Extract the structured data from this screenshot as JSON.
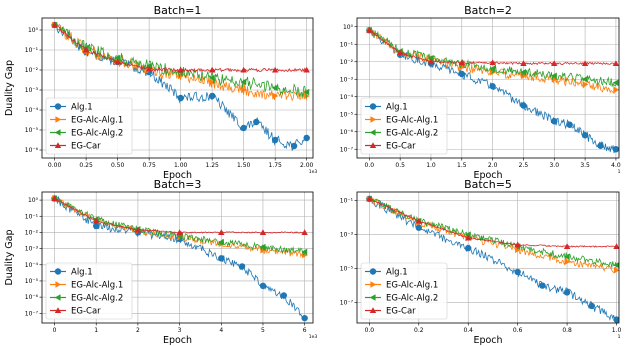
{
  "chart_data": [
    {
      "type": "line",
      "title": "Batch=1",
      "xlabel": "Epoch",
      "ylabel": "Duality Gap",
      "yscale": "log",
      "x_multiplier_label": "1e3",
      "xlim": [
        -0.1,
        2.05
      ],
      "ylim_exp": [
        -6.4,
        0.6
      ],
      "xticks": [
        0,
        0.25,
        0.5,
        0.75,
        1.0,
        1.25,
        1.5,
        1.75,
        2.0
      ],
      "xtick_labels": [
        "0.00",
        "0.25",
        "0.50",
        "0.75",
        "1.00",
        "1.25",
        "1.50",
        "1.75",
        "2.00"
      ],
      "ytick_exps": [
        0,
        -1,
        -2,
        -3,
        -4,
        -5,
        -6
      ],
      "ytick_labels": [
        "10⁰",
        "10⁻¹",
        "10⁻²",
        "10⁻³",
        "10⁻⁴",
        "10⁻⁵",
        "10⁻⁶"
      ],
      "grid": true,
      "legend_position": "lower-left",
      "series": [
        {
          "name": "Alg.1",
          "color": "#1f77b4",
          "marker": "circle",
          "x": [
            0,
            0.25,
            0.5,
            0.75,
            1.0,
            1.25,
            1.5,
            1.6,
            1.75,
            1.9,
            2.0
          ],
          "y_exp": [
            0.25,
            -1.1,
            -1.6,
            -2.1,
            -3.4,
            -3.3,
            -4.9,
            -4.6,
            -5.5,
            -5.8,
            -5.4
          ],
          "noise": 0.25
        },
        {
          "name": "EG-Alc-Alg.1",
          "color": "#ff7f0e",
          "marker": "triangle-right",
          "x": [
            0,
            0.25,
            0.5,
            0.75,
            1.0,
            1.25,
            1.5,
            1.75,
            2.0
          ],
          "y_exp": [
            0.25,
            -1.0,
            -1.5,
            -2.0,
            -2.3,
            -2.6,
            -3.0,
            -3.3,
            -3.3
          ],
          "noise": 0.3
        },
        {
          "name": "EG-Alc-Alg.2",
          "color": "#2ca02c",
          "marker": "triangle-left",
          "x": [
            0,
            0.25,
            0.5,
            0.75,
            1.0,
            1.25,
            1.5,
            1.75,
            2.0
          ],
          "y_exp": [
            0.25,
            -0.9,
            -1.4,
            -1.8,
            -2.1,
            -2.4,
            -2.6,
            -2.9,
            -3.1
          ],
          "noise": 0.3
        },
        {
          "name": "EG-Car",
          "color": "#d62728",
          "marker": "triangle-up",
          "x": [
            0,
            0.25,
            0.5,
            0.75,
            1.0,
            1.25,
            1.5,
            1.75,
            2.0
          ],
          "y_exp": [
            0.25,
            -1.0,
            -1.6,
            -1.95,
            -2.0,
            -2.0,
            -2.0,
            -2.0,
            -2.0
          ],
          "noise": 0.08
        }
      ]
    },
    {
      "type": "line",
      "title": "Batch=2",
      "xlabel": "Epoch",
      "ylabel": "",
      "yscale": "log",
      "x_multiplier_label": "1",
      "xlim": [
        -0.2,
        4.05
      ],
      "ylim_exp": [
        -7.5,
        0.5
      ],
      "xticks": [
        0,
        0.5,
        1.0,
        1.5,
        2.0,
        2.5,
        3.0,
        3.5,
        4.0
      ],
      "xtick_labels": [
        "0.0",
        "0.5",
        "1.0",
        "1.5",
        "2.0",
        "2.5",
        "3.0",
        "3.5",
        "4.0"
      ],
      "ytick_exps": [
        0,
        -1,
        -2,
        -3,
        -4,
        -5,
        -6,
        -7
      ],
      "ytick_labels": [
        "10⁰",
        "10⁻¹",
        "10⁻²",
        "10⁻³",
        "10⁻⁴",
        "10⁻⁵",
        "10⁻⁶",
        "10⁻⁷"
      ],
      "grid": true,
      "legend_position": "lower-left",
      "series": [
        {
          "name": "Alg.1",
          "color": "#1f77b4",
          "marker": "circle",
          "x": [
            0,
            0.5,
            1.0,
            1.5,
            2.0,
            2.5,
            3.0,
            3.25,
            3.5,
            3.75,
            4.0
          ],
          "y_exp": [
            -0.2,
            -1.6,
            -2.1,
            -2.7,
            -3.4,
            -4.5,
            -5.4,
            -5.6,
            -6.2,
            -6.8,
            -7.0
          ],
          "noise": 0.25
        },
        {
          "name": "EG-Alc-Alg.1",
          "color": "#ff7f0e",
          "marker": "triangle-right",
          "x": [
            0,
            0.5,
            1.0,
            1.5,
            2.0,
            2.5,
            3.0,
            3.5,
            4.0
          ],
          "y_exp": [
            -0.2,
            -1.5,
            -1.9,
            -2.3,
            -2.6,
            -2.8,
            -3.0,
            -3.3,
            -3.6
          ],
          "noise": 0.25
        },
        {
          "name": "EG-Alc-Alg.2",
          "color": "#2ca02c",
          "marker": "triangle-left",
          "x": [
            0,
            0.5,
            1.0,
            1.5,
            2.0,
            2.5,
            3.0,
            3.5,
            4.0
          ],
          "y_exp": [
            -0.2,
            -1.4,
            -1.8,
            -2.1,
            -2.4,
            -2.6,
            -2.8,
            -3.0,
            -3.2
          ],
          "noise": 0.25
        },
        {
          "name": "EG-Car",
          "color": "#d62728",
          "marker": "triangle-up",
          "x": [
            0,
            0.5,
            1.0,
            1.5,
            2.0,
            2.5,
            3.0,
            3.5,
            4.0
          ],
          "y_exp": [
            -0.2,
            -1.5,
            -2.0,
            -2.05,
            -2.05,
            -2.1,
            -2.1,
            -2.1,
            -2.1
          ],
          "noise": 0.06
        }
      ]
    },
    {
      "type": "line",
      "title": "Batch=3",
      "xlabel": "Epoch",
      "ylabel": "Duality Gap",
      "yscale": "log",
      "x_multiplier_label": "1e3",
      "xlim": [
        -0.3,
        6.2
      ],
      "ylim_exp": [
        -7.6,
        0.5
      ],
      "xticks": [
        0,
        1,
        2,
        3,
        4,
        5,
        6
      ],
      "xtick_labels": [
        "0",
        "1",
        "2",
        "3",
        "4",
        "5",
        "6"
      ],
      "ytick_exps": [
        0,
        -1,
        -2,
        -3,
        -4,
        -5,
        -6,
        -7
      ],
      "ytick_labels": [
        "10⁰",
        "10⁻¹",
        "10⁻²",
        "10⁻³",
        "10⁻⁴",
        "10⁻⁵",
        "10⁻⁶",
        "10⁻⁷"
      ],
      "grid": true,
      "legend_position": "lower-left",
      "series": [
        {
          "name": "Alg.1",
          "color": "#1f77b4",
          "marker": "circle",
          "x": [
            0,
            1,
            2,
            3,
            4,
            4.5,
            5,
            5.5,
            6.0
          ],
          "y_exp": [
            0.1,
            -1.6,
            -2.0,
            -2.4,
            -3.6,
            -4.1,
            -5.3,
            -5.9,
            -7.3
          ],
          "noise": 0.25
        },
        {
          "name": "EG-Alc-Alg.1",
          "color": "#ff7f0e",
          "marker": "triangle-right",
          "x": [
            0,
            1,
            2,
            3,
            4,
            5,
            6
          ],
          "y_exp": [
            0.1,
            -1.3,
            -1.9,
            -2.3,
            -2.7,
            -3.1,
            -3.4
          ],
          "noise": 0.2
        },
        {
          "name": "EG-Alc-Alg.2",
          "color": "#2ca02c",
          "marker": "triangle-left",
          "x": [
            0,
            1,
            2,
            3,
            4,
            5,
            6
          ],
          "y_exp": [
            0.1,
            -1.2,
            -1.8,
            -2.2,
            -2.6,
            -2.9,
            -3.2
          ],
          "noise": 0.2
        },
        {
          "name": "EG-Car",
          "color": "#d62728",
          "marker": "triangle-up",
          "x": [
            0,
            1,
            2,
            3,
            4,
            5,
            6
          ],
          "y_exp": [
            0.1,
            -1.3,
            -1.85,
            -2.0,
            -2.0,
            -2.0,
            -2.0
          ],
          "noise": 0.04
        }
      ]
    },
    {
      "type": "line",
      "title": "Batch=5",
      "xlabel": "Epoch",
      "ylabel": "",
      "yscale": "log",
      "x_multiplier_label": "1",
      "xlim": [
        -0.05,
        1.01
      ],
      "ylim_exp": [
        -8.2,
        -0.5
      ],
      "xticks": [
        0.0,
        0.2,
        0.4,
        0.6,
        0.8,
        1.0
      ],
      "xtick_labels": [
        "0.0",
        "0.2",
        "0.4",
        "0.6",
        "0.8",
        "1.0"
      ],
      "ytick_exps": [
        -1,
        -3,
        -5,
        -7
      ],
      "ytick_labels": [
        "10⁻¹",
        "10⁻³",
        "10⁻⁵",
        "10⁻⁷"
      ],
      "grid": true,
      "legend_position": "lower-left",
      "series": [
        {
          "name": "Alg.1",
          "color": "#1f77b4",
          "marker": "circle",
          "x": [
            0,
            0.2,
            0.4,
            0.6,
            0.7,
            0.8,
            0.9,
            1.0
          ],
          "y_exp": [
            -0.9,
            -2.6,
            -3.8,
            -5.2,
            -6.0,
            -6.4,
            -7.2,
            -8.0
          ],
          "noise": 0.25
        },
        {
          "name": "EG-Alc-Alg.1",
          "color": "#ff7f0e",
          "marker": "triangle-right",
          "x": [
            0,
            0.2,
            0.4,
            0.6,
            0.8,
            1.0
          ],
          "y_exp": [
            -0.9,
            -2.3,
            -3.2,
            -3.9,
            -4.6,
            -5.1
          ],
          "noise": 0.2
        },
        {
          "name": "EG-Alc-Alg.2",
          "color": "#2ca02c",
          "marker": "triangle-left",
          "x": [
            0,
            0.2,
            0.4,
            0.6,
            0.8,
            1.0
          ],
          "y_exp": [
            -0.9,
            -2.2,
            -3.0,
            -3.7,
            -4.3,
            -4.8
          ],
          "noise": 0.2
        },
        {
          "name": "EG-Car",
          "color": "#d62728",
          "marker": "triangle-up",
          "x": [
            0,
            0.2,
            0.4,
            0.6,
            0.8,
            1.0
          ],
          "y_exp": [
            -0.9,
            -2.2,
            -3.2,
            -3.6,
            -3.7,
            -3.7
          ],
          "noise": 0.04
        }
      ]
    }
  ]
}
